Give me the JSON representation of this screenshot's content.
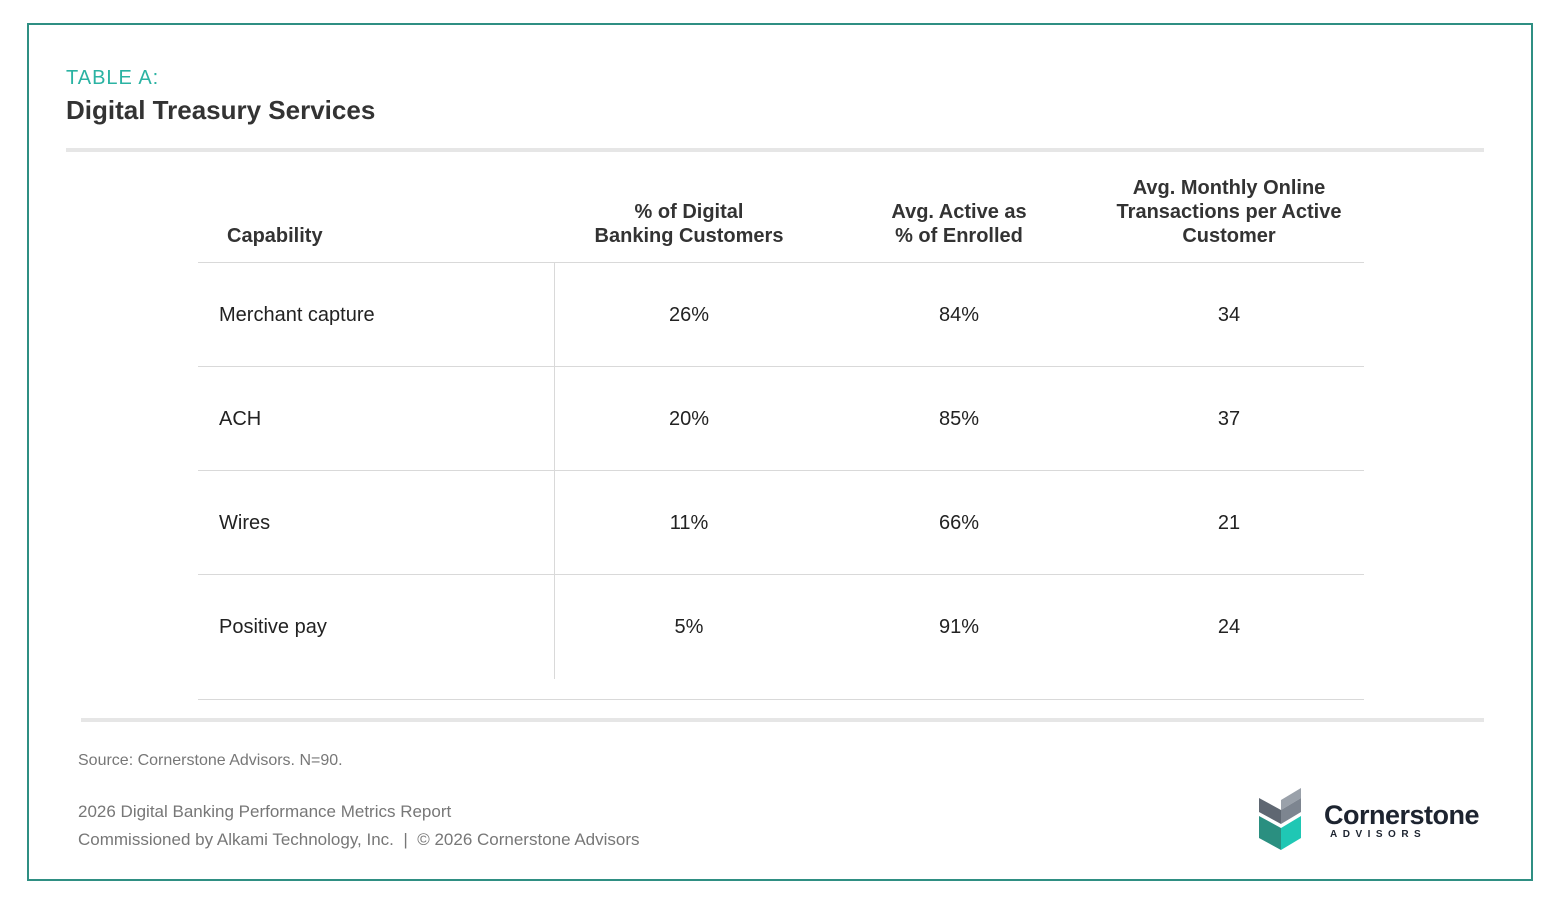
{
  "header": {
    "eyebrow": "TABLE A:",
    "title": "Digital Treasury Services"
  },
  "chart_data": {
    "type": "table",
    "title": "Digital Treasury Services",
    "columns": [
      "Capability",
      "% of Digital Banking Customers",
      "Avg. Active as % of Enrolled",
      "Avg. Monthly Online Transactions per Active Customer"
    ],
    "header_lines": {
      "capability": [
        "Capability"
      ],
      "pct_digital": [
        "% of Digital",
        "Banking Customers"
      ],
      "active_enrolled": [
        "Avg. Active as",
        "% of Enrolled"
      ],
      "monthly_tx": [
        "Avg. Monthly Online",
        "Transactions per Active",
        "Customer"
      ]
    },
    "rows": [
      {
        "capability": "Merchant capture",
        "pct_digital": "26%",
        "active_enrolled": "84%",
        "monthly_tx": "34"
      },
      {
        "capability": "ACH",
        "pct_digital": "20%",
        "active_enrolled": "85%",
        "monthly_tx": "37"
      },
      {
        "capability": "Wires",
        "pct_digital": "11%",
        "active_enrolled": "66%",
        "monthly_tx": "21"
      },
      {
        "capability": "Positive pay",
        "pct_digital": "5%",
        "active_enrolled": "91%",
        "monthly_tx": "24"
      }
    ]
  },
  "footer": {
    "source": "Source: Cornerstone Advisors. N=90.",
    "report": "2026 Digital Banking Performance Metrics Report",
    "commissioned": "Commissioned by Alkami Technology, Inc.  |  © 2026 Cornerstone Advisors"
  },
  "logo": {
    "name": "Cornerstone",
    "sub": "ADVISORS"
  },
  "colors": {
    "frame": "#2f8f83",
    "accent": "#2bb3a3",
    "logo_teal": "#1fc7b4",
    "logo_dark": "#2a8f80",
    "logo_gray": "#7d8590"
  }
}
